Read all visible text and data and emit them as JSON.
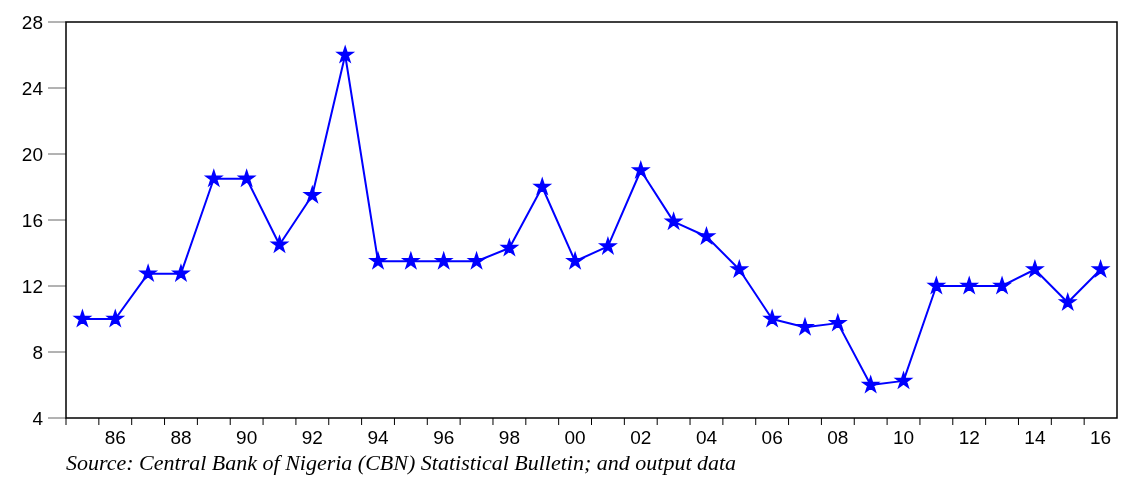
{
  "chart_data": {
    "type": "line",
    "x": [
      1985,
      1986,
      1987,
      1988,
      1989,
      1990,
      1991,
      1992,
      1993,
      1994,
      1995,
      1996,
      1997,
      1998,
      1999,
      2000,
      2001,
      2002,
      2003,
      2004,
      2005,
      2006,
      2007,
      2008,
      2009,
      2010,
      2011,
      2012,
      2013,
      2014,
      2015,
      2016
    ],
    "series": [
      {
        "color": "#0000ff",
        "values": [
          10,
          10,
          12.75,
          12.75,
          18.5,
          18.5,
          14.5,
          17.5,
          26,
          13.5,
          13.5,
          13.5,
          13.5,
          14.3,
          18,
          13.5,
          14.4,
          19,
          15.9,
          15,
          13,
          10,
          9.5,
          9.75,
          6,
          6.25,
          12,
          12,
          12,
          13,
          11,
          13
        ]
      }
    ],
    "xlim": [
      1984.5,
      2016.5
    ],
    "xticks": [
      {
        "value": 1985.5,
        "label": null
      },
      {
        "value": 1986,
        "label": "86"
      },
      {
        "value": 1986.5,
        "label": null
      },
      {
        "value": 1987.5,
        "label": null
      },
      {
        "value": 1988,
        "label": "88"
      },
      {
        "value": 1988.5,
        "label": null
      },
      {
        "value": 1989.5,
        "label": null
      },
      {
        "value": 1990,
        "label": "90"
      },
      {
        "value": 1990.5,
        "label": null
      },
      {
        "value": 1991.5,
        "label": null
      },
      {
        "value": 1992,
        "label": "92"
      },
      {
        "value": 1992.5,
        "label": null
      },
      {
        "value": 1993.5,
        "label": null
      },
      {
        "value": 1994,
        "label": "94"
      },
      {
        "value": 1994.5,
        "label": null
      },
      {
        "value": 1995.5,
        "label": null
      },
      {
        "value": 1996,
        "label": "96"
      },
      {
        "value": 1996.5,
        "label": null
      },
      {
        "value": 1997.5,
        "label": null
      },
      {
        "value": 1998,
        "label": "98"
      },
      {
        "value": 1998.5,
        "label": null
      },
      {
        "value": 1999.5,
        "label": null
      },
      {
        "value": 2000,
        "label": "00"
      },
      {
        "value": 2000.5,
        "label": null
      },
      {
        "value": 2001.5,
        "label": null
      },
      {
        "value": 2002,
        "label": "02"
      },
      {
        "value": 2002.5,
        "label": null
      },
      {
        "value": 2003.5,
        "label": null
      },
      {
        "value": 2004,
        "label": "04"
      },
      {
        "value": 2004.5,
        "label": null
      },
      {
        "value": 2005.5,
        "label": null
      },
      {
        "value": 2006,
        "label": "06"
      },
      {
        "value": 2006.5,
        "label": null
      },
      {
        "value": 2007.5,
        "label": null
      },
      {
        "value": 2008,
        "label": "08"
      },
      {
        "value": 2008.5,
        "label": null
      },
      {
        "value": 2009.5,
        "label": null
      },
      {
        "value": 2010,
        "label": "10"
      },
      {
        "value": 2010.5,
        "label": null
      },
      {
        "value": 2011.5,
        "label": null
      },
      {
        "value": 2012,
        "label": "12"
      },
      {
        "value": 2012.5,
        "label": null
      },
      {
        "value": 2013.5,
        "label": null
      },
      {
        "value": 2014,
        "label": "14"
      },
      {
        "value": 2014.5,
        "label": null
      },
      {
        "value": 2015.5,
        "label": null
      },
      {
        "value": 2016,
        "label": "16"
      }
    ],
    "ylim": [
      4,
      28
    ],
    "yticks": [
      4,
      8,
      12,
      16,
      20,
      24,
      28
    ],
    "grid": false,
    "marker": "star",
    "line_style": "solid",
    "annotations": [
      "Source: Central Bank of Nigeria (CBN) Statistical Bulletin; and output data"
    ]
  }
}
